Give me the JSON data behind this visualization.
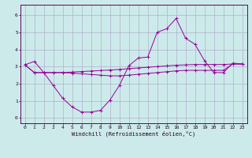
{
  "x": [
    0,
    1,
    2,
    3,
    4,
    5,
    6,
    7,
    8,
    9,
    10,
    11,
    12,
    13,
    14,
    15,
    16,
    17,
    18,
    19,
    20,
    21,
    22,
    23
  ],
  "line1": [
    3.1,
    3.3,
    2.65,
    1.9,
    1.15,
    0.65,
    0.35,
    0.35,
    0.45,
    1.05,
    1.9,
    3.05,
    3.5,
    3.55,
    5.0,
    5.2,
    5.8,
    4.65,
    4.3,
    3.35,
    2.65,
    2.65,
    3.2,
    3.15
  ],
  "line2": [
    3.1,
    2.65,
    2.65,
    2.65,
    2.65,
    2.68,
    2.71,
    2.74,
    2.77,
    2.8,
    2.83,
    2.88,
    2.92,
    2.96,
    3.0,
    3.04,
    3.08,
    3.1,
    3.12,
    3.12,
    3.12,
    3.12,
    3.15,
    3.15
  ],
  "line3": [
    3.1,
    2.65,
    2.65,
    2.65,
    2.65,
    2.62,
    2.58,
    2.54,
    2.5,
    2.46,
    2.46,
    2.5,
    2.55,
    2.6,
    2.65,
    2.7,
    2.75,
    2.78,
    2.78,
    2.78,
    2.78,
    2.78,
    3.15,
    3.15
  ],
  "bg_color": "#cceaea",
  "grid_color": "#b0b0cc",
  "line_color": "#990099",
  "xlabel": "Windchill (Refroidissement éolien,°C)",
  "ylim": [
    -0.3,
    6.6
  ],
  "xlim": [
    -0.5,
    23.5
  ],
  "yticks": [
    0,
    1,
    2,
    3,
    4,
    5,
    6
  ],
  "xticks": [
    0,
    1,
    2,
    3,
    4,
    5,
    6,
    7,
    8,
    9,
    10,
    11,
    12,
    13,
    14,
    15,
    16,
    17,
    18,
    19,
    20,
    21,
    22,
    23
  ]
}
